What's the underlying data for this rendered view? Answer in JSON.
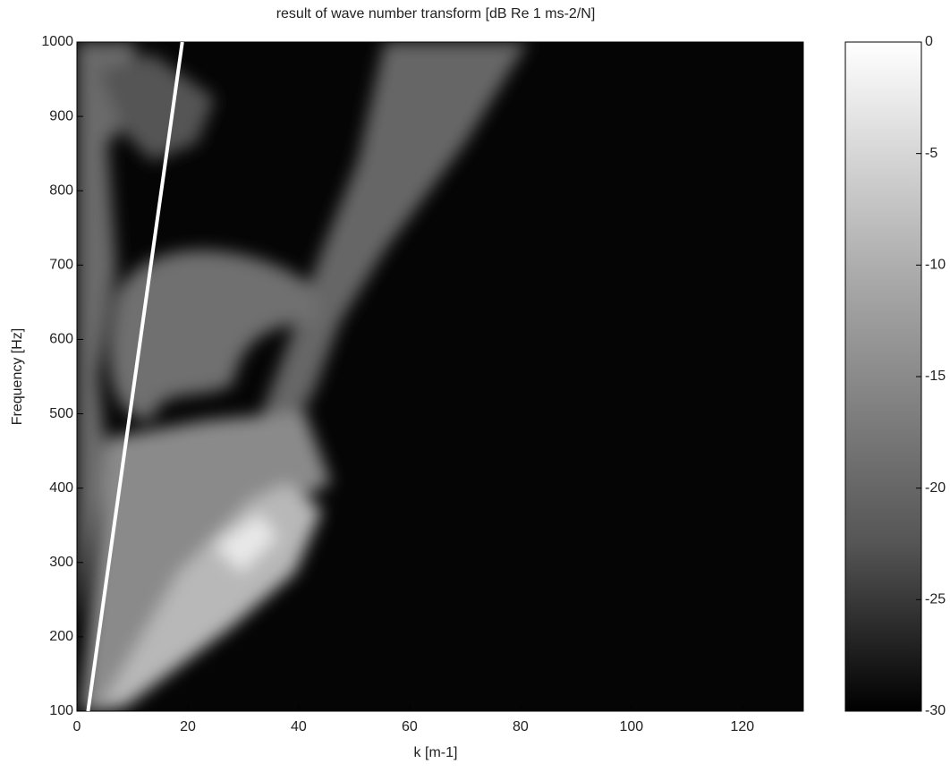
{
  "chart_data": {
    "type": "heatmap",
    "title": "result of wave number transform [dB Re 1 ms-2/N]",
    "xlabel": "k [m-1]",
    "ylabel": "Frequency [Hz]",
    "xlim": [
      0,
      131
    ],
    "ylim": [
      100,
      1000
    ],
    "xticks": [
      0,
      20,
      40,
      60,
      80,
      100,
      120
    ],
    "yticks": [
      100,
      200,
      300,
      400,
      500,
      600,
      700,
      800,
      900,
      1000
    ],
    "colormap": "gray",
    "clim": [
      -30,
      0
    ],
    "cticks": [
      0,
      -5,
      -10,
      -15,
      -20,
      -25,
      -30
    ],
    "series": [
      {
        "color": "#ffffff",
        "x": [
          2,
          19
        ],
        "values": [
          100,
          1000
        ]
      }
    ]
  }
}
